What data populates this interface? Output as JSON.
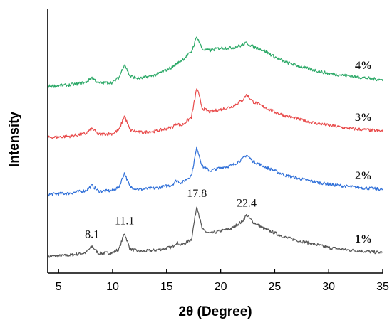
{
  "chart_data": {
    "type": "line",
    "title": "",
    "xlabel": "2θ (Degree)",
    "ylabel": "Intensity",
    "xlim": [
      4,
      35
    ],
    "xticks": [
      5,
      10,
      15,
      20,
      25,
      30,
      35
    ],
    "y_ticks_shown": false,
    "peak_positions": [
      8.1,
      11.1,
      17.8,
      22.4
    ],
    "peak_labels": [
      "8.1",
      "11.1",
      "17.8",
      "22.4"
    ],
    "series": [
      {
        "name": "1%",
        "color": "#555555",
        "baseline": 0,
        "points": [
          [
            4,
            8
          ],
          [
            6,
            10
          ],
          [
            7.5,
            14
          ],
          [
            8.1,
            24
          ],
          [
            8.7,
            13
          ],
          [
            10,
            14
          ],
          [
            10.6,
            20
          ],
          [
            11.1,
            45
          ],
          [
            11.6,
            20
          ],
          [
            12.5,
            16
          ],
          [
            14,
            18
          ],
          [
            15.5,
            23
          ],
          [
            15.9,
            30
          ],
          [
            16.4,
            26
          ],
          [
            17.3,
            35
          ],
          [
            17.8,
            88
          ],
          [
            18.3,
            50
          ],
          [
            19,
            44
          ],
          [
            20,
            48
          ],
          [
            21,
            52
          ],
          [
            22,
            63
          ],
          [
            22.4,
            73
          ],
          [
            23,
            62
          ],
          [
            24,
            52
          ],
          [
            25,
            45
          ],
          [
            26,
            38
          ],
          [
            28,
            30
          ],
          [
            30,
            22
          ],
          [
            32,
            18
          ],
          [
            35,
            14
          ]
        ]
      },
      {
        "name": "2%",
        "color": "#2f6fd8",
        "baseline": 97,
        "points": [
          [
            4,
            8
          ],
          [
            6,
            10
          ],
          [
            7.5,
            14
          ],
          [
            8.1,
            22
          ],
          [
            8.7,
            13
          ],
          [
            10,
            14
          ],
          [
            10.6,
            20
          ],
          [
            11.1,
            42
          ],
          [
            11.6,
            20
          ],
          [
            12.5,
            16
          ],
          [
            14,
            18
          ],
          [
            15.5,
            23
          ],
          [
            15.9,
            30
          ],
          [
            16.4,
            26
          ],
          [
            17.3,
            38
          ],
          [
            17.8,
            82
          ],
          [
            18.3,
            52
          ],
          [
            19,
            45
          ],
          [
            20,
            50
          ],
          [
            21,
            53
          ],
          [
            22,
            63
          ],
          [
            22.4,
            70
          ],
          [
            23,
            60
          ],
          [
            24,
            52
          ],
          [
            25,
            45
          ],
          [
            26,
            38
          ],
          [
            28,
            30
          ],
          [
            30,
            24
          ],
          [
            32,
            20
          ],
          [
            35,
            16
          ]
        ]
      },
      {
        "name": "3%",
        "color": "#e84a4a",
        "baseline": 186,
        "points": [
          [
            4,
            8
          ],
          [
            6,
            10
          ],
          [
            7.5,
            14
          ],
          [
            8.1,
            22
          ],
          [
            8.7,
            13
          ],
          [
            10,
            14
          ],
          [
            10.6,
            20
          ],
          [
            11.1,
            42
          ],
          [
            11.6,
            20
          ],
          [
            12.5,
            16
          ],
          [
            14,
            18
          ],
          [
            15.5,
            24
          ],
          [
            15.9,
            30
          ],
          [
            16.4,
            27
          ],
          [
            17.3,
            40
          ],
          [
            17.8,
            86
          ],
          [
            18.3,
            54
          ],
          [
            19,
            48
          ],
          [
            20,
            52
          ],
          [
            21,
            56
          ],
          [
            22,
            66
          ],
          [
            22.4,
            75
          ],
          [
            23,
            64
          ],
          [
            24,
            56
          ],
          [
            25,
            48
          ],
          [
            26,
            42
          ],
          [
            28,
            33
          ],
          [
            30,
            27
          ],
          [
            32,
            22
          ],
          [
            35,
            18
          ]
        ]
      },
      {
        "name": "4%",
        "color": "#2aa866",
        "baseline": 266,
        "points": [
          [
            4,
            8
          ],
          [
            6,
            10
          ],
          [
            7.5,
            14
          ],
          [
            8.1,
            22
          ],
          [
            8.7,
            13
          ],
          [
            10,
            14
          ],
          [
            10.6,
            22
          ],
          [
            11.1,
            43
          ],
          [
            11.6,
            24
          ],
          [
            12.5,
            20
          ],
          [
            14,
            26
          ],
          [
            15.5,
            38
          ],
          [
            16.5,
            50
          ],
          [
            17.3,
            62
          ],
          [
            17.8,
            86
          ],
          [
            18.3,
            66
          ],
          [
            19,
            64
          ],
          [
            20,
            68
          ],
          [
            21,
            68
          ],
          [
            22,
            72
          ],
          [
            22.4,
            76
          ],
          [
            23,
            70
          ],
          [
            24,
            64
          ],
          [
            25,
            54
          ],
          [
            26,
            46
          ],
          [
            28,
            36
          ],
          [
            30,
            28
          ],
          [
            32,
            24
          ],
          [
            35,
            18
          ]
        ]
      }
    ]
  }
}
